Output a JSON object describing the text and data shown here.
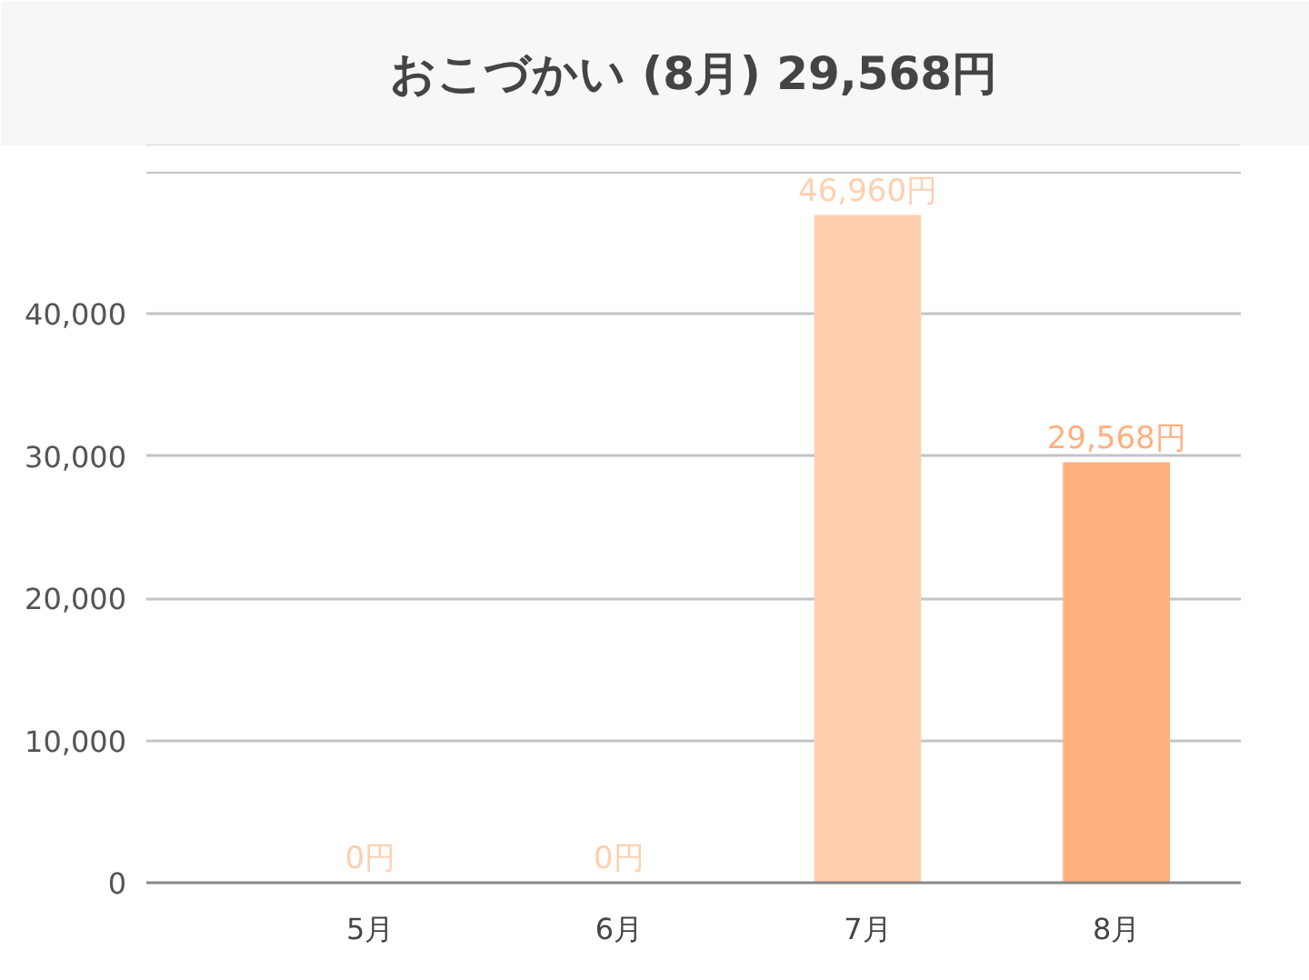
{
  "chart_data": {
    "type": "bar",
    "title": "おこづかい (8月) 29,568円",
    "categories": [
      "5月",
      "6月",
      "7月",
      "8月"
    ],
    "values": [
      0,
      0,
      46960,
      29568
    ],
    "colors": [
      "#ffd0b0",
      "#ffd0b0",
      "#ffd0b0",
      "#ffb07f"
    ],
    "value_labels": [
      "0円",
      "0円",
      "46,960円",
      "29,568円"
    ],
    "ylim": [
      0,
      50000
    ],
    "yticks": [
      0,
      {
        "value": 10000,
        "label": "10,000"
      },
      {
        "value": 20000,
        "label": "20,000"
      },
      {
        "value": 30000,
        "label": "30,000"
      },
      {
        "value": 40000,
        "label": "40,000"
      },
      {
        "value": 50000,
        "label": null
      }
    ],
    "grid": "y"
  }
}
